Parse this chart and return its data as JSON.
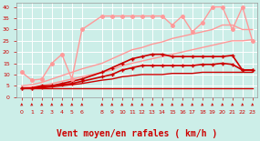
{
  "background_color": "#cceee8",
  "grid_color": "#ffffff",
  "xlabel": "Vent moyen/en rafales ( km/h )",
  "xlabel_fontsize": 7,
  "xlabel_color": "#cc0000",
  "tick_color": "#cc0000",
  "xlim": [
    -0.5,
    23.5
  ],
  "ylim": [
    0,
    42
  ],
  "xticks": [
    0,
    1,
    2,
    3,
    4,
    5,
    6,
    8,
    9,
    10,
    11,
    12,
    13,
    14,
    15,
    16,
    17,
    18,
    19,
    20,
    21,
    22,
    23
  ],
  "yticks": [
    0,
    5,
    10,
    15,
    20,
    25,
    30,
    35,
    40
  ],
  "series": [
    {
      "x": [
        0,
        1,
        2,
        3,
        4,
        5,
        6,
        8,
        9,
        10,
        11,
        12,
        13,
        14,
        15,
        16,
        17,
        18,
        19,
        20,
        21,
        22,
        23
      ],
      "y": [
        4,
        4,
        4,
        4,
        4,
        4,
        4,
        4,
        4,
        4,
        4,
        4,
        4,
        4,
        4,
        4,
        4,
        4,
        4,
        4,
        4,
        4,
        4
      ],
      "color": "#cc0000",
      "linewidth": 1.0,
      "marker": null,
      "markersize": 0,
      "linestyle": "-"
    },
    {
      "x": [
        0,
        1,
        2,
        3,
        4,
        5,
        6,
        8,
        9,
        10,
        11,
        12,
        13,
        14,
        15,
        16,
        17,
        18,
        19,
        20,
        21,
        22,
        23
      ],
      "y": [
        4,
        4,
        4,
        4.5,
        5,
        5.5,
        6,
        7.5,
        8,
        9,
        9.5,
        10,
        10,
        10,
        10.5,
        10.5,
        10.5,
        11,
        11,
        11,
        11,
        11,
        11
      ],
      "color": "#cc0000",
      "linewidth": 1.0,
      "marker": null,
      "markersize": 0,
      "linestyle": "-"
    },
    {
      "x": [
        0,
        1,
        2,
        3,
        4,
        5,
        6,
        8,
        9,
        10,
        11,
        12,
        13,
        14,
        15,
        16,
        17,
        18,
        19,
        20,
        21,
        22,
        23
      ],
      "y": [
        4,
        4,
        4.5,
        5,
        6,
        7,
        8,
        11,
        13,
        15,
        17,
        18,
        19,
        19,
        18,
        18,
        18,
        18,
        18,
        18,
        18.5,
        12,
        12
      ],
      "color": "#cc0000",
      "linewidth": 1.2,
      "marker": "+",
      "markersize": 3.5,
      "linestyle": "-"
    },
    {
      "x": [
        0,
        1,
        2,
        3,
        4,
        5,
        6,
        8,
        9,
        10,
        11,
        12,
        13,
        14,
        15,
        16,
        17,
        18,
        19,
        20,
        21,
        22,
        23
      ],
      "y": [
        4,
        4,
        5,
        5,
        5.5,
        6,
        7,
        9,
        10,
        12,
        13,
        14,
        14,
        14,
        14,
        14,
        14,
        14.5,
        14.5,
        15,
        14.5,
        12,
        12
      ],
      "color": "#cc0000",
      "linewidth": 1.2,
      "marker": "+",
      "markersize": 3.5,
      "linestyle": "-"
    },
    {
      "x": [
        0,
        1,
        2,
        3,
        4,
        5,
        6,
        8,
        9,
        10,
        11,
        12,
        13,
        14,
        15,
        16,
        17,
        18,
        19,
        20,
        21,
        22,
        23
      ],
      "y": [
        4,
        4.5,
        5,
        6,
        7,
        8,
        9,
        11,
        12,
        14,
        15,
        16,
        17,
        18,
        19,
        20,
        21,
        22,
        23,
        24,
        25,
        25,
        25.5
      ],
      "color": "#ff9999",
      "linewidth": 1.0,
      "marker": null,
      "markersize": 0,
      "linestyle": "-"
    },
    {
      "x": [
        0,
        1,
        2,
        3,
        4,
        5,
        6,
        8,
        9,
        10,
        11,
        12,
        13,
        14,
        15,
        16,
        17,
        18,
        19,
        20,
        21,
        22,
        23
      ],
      "y": [
        5,
        5.5,
        6.5,
        8,
        9.5,
        11,
        12.5,
        15,
        17,
        19,
        21,
        22,
        23.5,
        24.5,
        26,
        27,
        28,
        29,
        30,
        32,
        32,
        30,
        30
      ],
      "color": "#ff9999",
      "linewidth": 1.0,
      "marker": null,
      "markersize": 0,
      "linestyle": "-"
    },
    {
      "x": [
        0,
        1,
        2,
        3,
        4,
        5,
        6,
        8,
        9,
        10,
        11,
        12,
        13,
        14,
        15,
        16,
        17,
        18,
        19,
        20,
        21,
        22,
        23
      ],
      "y": [
        11,
        7.5,
        8,
        15,
        19,
        8,
        30,
        36,
        36,
        36,
        36,
        36,
        36,
        36,
        32,
        36,
        29,
        33,
        40,
        40,
        30,
        40,
        25
      ],
      "color": "#ff9999",
      "linewidth": 1.0,
      "marker": "o",
      "markersize": 2.5,
      "linestyle": "-"
    }
  ],
  "arrows_x": [
    0,
    1,
    2,
    3,
    4,
    5,
    6,
    8,
    9,
    10,
    11,
    12,
    13,
    14,
    15,
    16,
    17,
    18,
    19,
    20,
    21,
    22,
    23
  ]
}
